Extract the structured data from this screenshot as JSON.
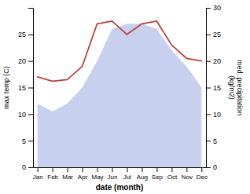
{
  "chart_data": {
    "type": "combo",
    "categories": [
      "Jan",
      "Feb",
      "Mar",
      "Apr",
      "May",
      "Jun",
      "Jul",
      "Aug",
      "Sep",
      "Oct",
      "Nov",
      "Dec"
    ],
    "xlabel": "date (month)",
    "ylabel": "max temp (C)",
    "y2label": "med. precipitation\n(kg/m2)",
    "ylim": [
      0,
      30
    ],
    "yticks": [
      0,
      5,
      10,
      15,
      20,
      25
    ],
    "y2lim": [
      0,
      30
    ],
    "y2ticks": [
      0,
      5,
      10,
      15,
      20,
      25,
      30
    ],
    "series": [
      {
        "type": "area",
        "color": "#c8d0f0",
        "values": [
          12,
          10.5,
          12,
          15,
          20,
          26,
          27,
          27,
          26,
          22,
          19,
          15
        ]
      },
      {
        "type": "line",
        "color": "#c0403a",
        "axis": "y2",
        "values": [
          17,
          16.2,
          16.5,
          19,
          27,
          27.5,
          25,
          27,
          27.5,
          23,
          20.5,
          20
        ]
      }
    ]
  }
}
